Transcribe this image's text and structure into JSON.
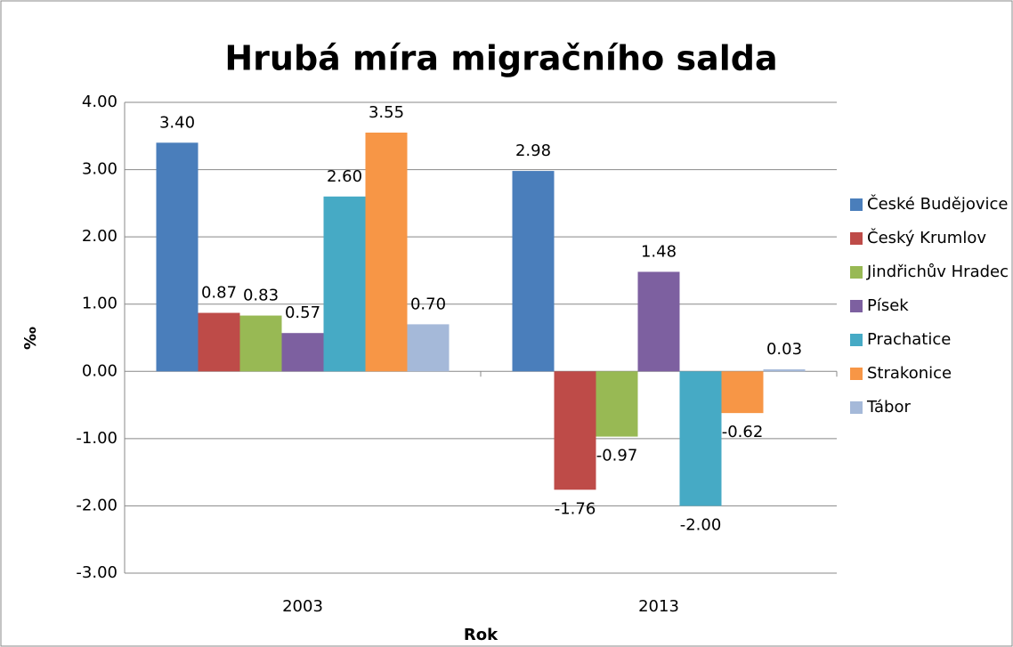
{
  "chart_data": {
    "type": "bar",
    "title": "Hrubá míra migračního salda",
    "x_label": "Rok",
    "y_label": "‰",
    "categories": [
      "2003",
      "2013"
    ],
    "series": [
      {
        "name": "České Budějovice",
        "color": "#4a7ebb",
        "values": [
          3.4,
          2.98
        ],
        "value_labels": [
          "3.40",
          "2.98"
        ]
      },
      {
        "name": "Český Krumlov",
        "color": "#be4b48",
        "values": [
          0.87,
          -1.76
        ],
        "value_labels": [
          "0.87",
          "-1.76"
        ]
      },
      {
        "name": "Jindřichův Hradec",
        "color": "#98b954",
        "values": [
          0.83,
          -0.97
        ],
        "value_labels": [
          "0.83",
          "-0.97"
        ]
      },
      {
        "name": "Písek",
        "color": "#7d60a0",
        "values": [
          0.57,
          1.48
        ],
        "value_labels": [
          "0.57",
          "1.48"
        ]
      },
      {
        "name": "Prachatice",
        "color": "#46aac5",
        "values": [
          2.6,
          -2.0
        ],
        "value_labels": [
          "2.60",
          "-2.00"
        ]
      },
      {
        "name": "Strakonice",
        "color": "#f79646",
        "values": [
          3.55,
          -0.62
        ],
        "value_labels": [
          "3.55",
          "-0.62"
        ]
      },
      {
        "name": "Tábor",
        "color": "#a5b9d9",
        "values": [
          0.7,
          0.03
        ],
        "value_labels": [
          "0.70",
          "0.03"
        ]
      }
    ],
    "ylim": [
      -3,
      4
    ],
    "yticks": [
      {
        "value": -3,
        "label": "-3.00"
      },
      {
        "value": -2,
        "label": "-2.00"
      },
      {
        "value": -1,
        "label": "-1.00"
      },
      {
        "value": 0,
        "label": "0.00"
      },
      {
        "value": 1,
        "label": "1.00"
      },
      {
        "value": 2,
        "label": "2.00"
      },
      {
        "value": 3,
        "label": "3.00"
      },
      {
        "value": 4,
        "label": "4.00"
      }
    ],
    "grid": true,
    "legend": "right"
  }
}
